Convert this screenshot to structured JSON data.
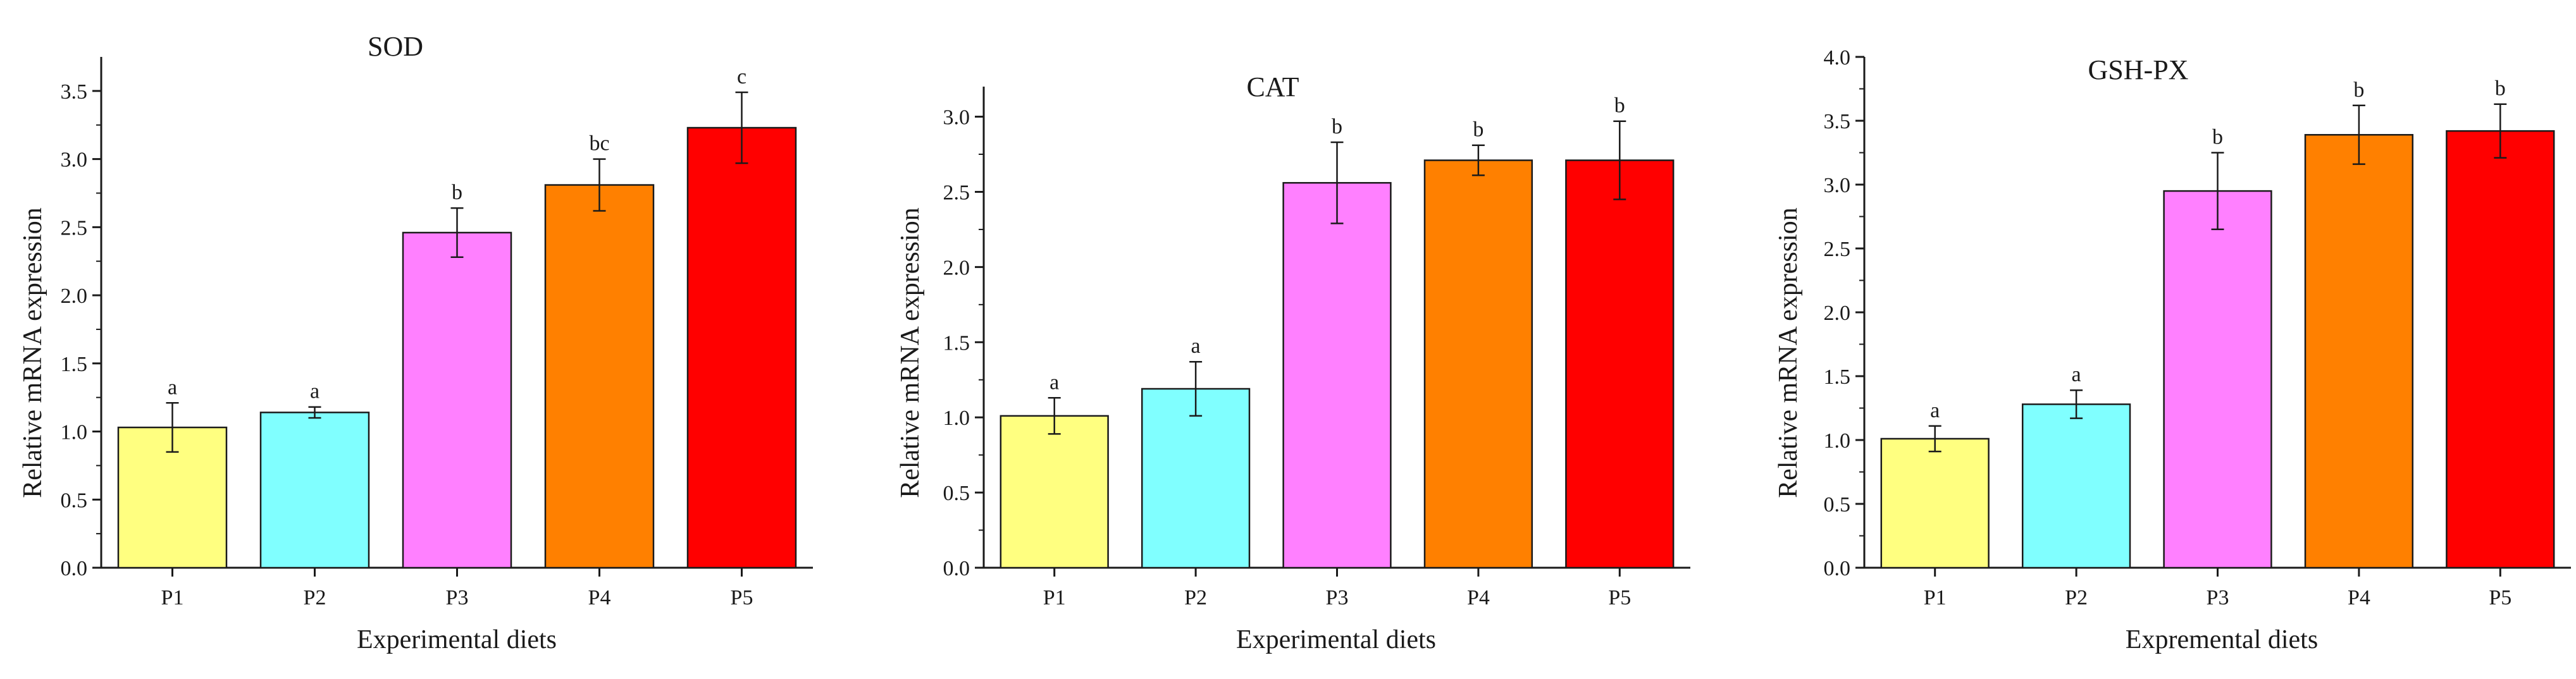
{
  "chart_data": [
    {
      "type": "bar",
      "title": "SOD",
      "xlabel": "Experimental diets",
      "ylabel": "Relative mRNA expression",
      "categories": [
        "P1",
        "P2",
        "P3",
        "P4",
        "P5"
      ],
      "values": [
        1.03,
        1.14,
        2.46,
        2.81,
        3.23
      ],
      "errors": [
        0.18,
        0.04,
        0.18,
        0.19,
        0.26
      ],
      "significance": [
        "a",
        "a",
        "b",
        "bc",
        "c"
      ],
      "colors": [
        "#ffff80",
        "#80ffff",
        "#ff80ff",
        "#ff8000",
        "#ff0000"
      ],
      "ylim": [
        0,
        3.75
      ],
      "yticks": [
        0.0,
        0.5,
        1.0,
        1.5,
        2.0,
        2.5,
        3.0,
        3.5
      ],
      "ytick_labels": [
        "0.0",
        "0.5",
        "1.0",
        "1.5",
        "2.0",
        "2.5",
        "3.0",
        "3.5"
      ],
      "grid": false
    },
    {
      "type": "bar",
      "title": "CAT",
      "xlabel": "Experimental diets",
      "ylabel": "Relative mRNA expression",
      "categories": [
        "P1",
        "P2",
        "P3",
        "P4",
        "P5"
      ],
      "values": [
        1.01,
        1.19,
        2.56,
        2.71,
        2.71
      ],
      "errors": [
        0.12,
        0.18,
        0.27,
        0.1,
        0.26
      ],
      "significance": [
        "a",
        "a",
        "b",
        "b",
        "b"
      ],
      "colors": [
        "#ffff80",
        "#80ffff",
        "#ff80ff",
        "#ff8000",
        "#ff0000"
      ],
      "ylim": [
        0,
        3.2
      ],
      "yticks": [
        0.0,
        0.5,
        1.0,
        1.5,
        2.0,
        2.5,
        3.0
      ],
      "ytick_labels": [
        "0.0",
        "0.5",
        "1.0",
        "1.5",
        "2.0",
        "2.5",
        "3.0"
      ],
      "grid": false
    },
    {
      "type": "bar",
      "title": "GSH-PX",
      "xlabel": "Expremental diets",
      "ylabel": "Relative mRNA expression",
      "categories": [
        "P1",
        "P2",
        "P3",
        "P4",
        "P5"
      ],
      "values": [
        1.01,
        1.28,
        2.95,
        3.39,
        3.42
      ],
      "errors": [
        0.1,
        0.11,
        0.3,
        0.23,
        0.21
      ],
      "significance": [
        "a",
        "a",
        "b",
        "b",
        "b"
      ],
      "colors": [
        "#ffff80",
        "#80ffff",
        "#ff80ff",
        "#ff8000",
        "#ff0000"
      ],
      "ylim": [
        0,
        4.0
      ],
      "yticks": [
        0.0,
        0.5,
        1.0,
        1.5,
        2.0,
        2.5,
        3.0,
        3.5,
        4.0
      ],
      "ytick_labels": [
        "0.0",
        "0.5",
        "1.0",
        "1.5",
        "2.0",
        "2.5",
        "3.0",
        "3.5",
        "4.0"
      ],
      "grid": false
    }
  ]
}
